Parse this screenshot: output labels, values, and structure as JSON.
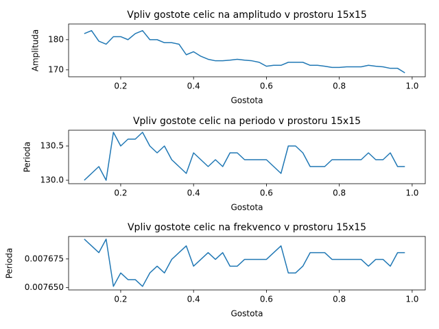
{
  "chart_data": [
    {
      "type": "line",
      "title": "Vpliv gostote celic na amplitudo v prostoru 15x15",
      "x_label": "Gostota",
      "y_label": "Amplituda",
      "x": [
        0.1,
        0.12,
        0.14,
        0.16,
        0.18,
        0.2,
        0.22,
        0.24,
        0.26,
        0.28,
        0.3,
        0.32,
        0.34,
        0.36,
        0.38,
        0.4,
        0.42,
        0.44,
        0.46,
        0.48,
        0.5,
        0.52,
        0.54,
        0.56,
        0.58,
        0.6,
        0.62,
        0.64,
        0.66,
        0.68,
        0.7,
        0.72,
        0.74,
        0.76,
        0.78,
        0.8,
        0.82,
        0.84,
        0.86,
        0.88,
        0.9,
        0.92,
        0.94,
        0.96,
        0.98
      ],
      "series": [
        {
          "color": "#1f77b4",
          "values": [
            182,
            183,
            179.5,
            178.5,
            181,
            181,
            180,
            182,
            183,
            180,
            180,
            179,
            179,
            178.5,
            175,
            176,
            174.5,
            173.5,
            173,
            173,
            173.2,
            173.5,
            173.2,
            173,
            172.5,
            171.2,
            171.5,
            171.5,
            172.5,
            172.5,
            172.5,
            171.5,
            171.5,
            171.2,
            170.8,
            170.8,
            171,
            171,
            171,
            171.5,
            171.2,
            171,
            170.5,
            170.5,
            169
          ]
        }
      ],
      "xlim": [
        0.057,
        1.036
      ],
      "xticks": [
        0.2,
        0.4,
        0.6,
        0.8,
        {
          "value": 1.0,
          "label": "1.0"
        }
      ],
      "ylim": [
        167.7,
        185.2
      ],
      "yticks": [
        170,
        180
      ]
    },
    {
      "type": "line",
      "title": "Vpliv gostote celic na periodo v prostoru 15x15",
      "x_label": "Gostota",
      "y_label": "Perioda",
      "x": [
        0.1,
        0.12,
        0.14,
        0.16,
        0.18,
        0.2,
        0.22,
        0.24,
        0.26,
        0.28,
        0.3,
        0.32,
        0.34,
        0.36,
        0.38,
        0.4,
        0.42,
        0.44,
        0.46,
        0.48,
        0.5,
        0.52,
        0.54,
        0.56,
        0.58,
        0.6,
        0.62,
        0.64,
        0.66,
        0.68,
        0.7,
        0.72,
        0.74,
        0.76,
        0.78,
        0.8,
        0.82,
        0.84,
        0.86,
        0.88,
        0.9,
        0.92,
        0.94,
        0.96,
        0.98
      ],
      "series": [
        {
          "color": "#1f77b4",
          "values": [
            130,
            130.1,
            130.2,
            130,
            130.7,
            130.5,
            130.6,
            130.6,
            130.7,
            130.5,
            130.4,
            130.5,
            130.3,
            130.2,
            130.1,
            130.4,
            130.3,
            130.2,
            130.3,
            130.2,
            130.4,
            130.4,
            130.3,
            130.3,
            130.3,
            130.3,
            130.2,
            130.1,
            130.5,
            130.5,
            130.4,
            130.2,
            130.2,
            130.2,
            130.3,
            130.3,
            130.3,
            130.3,
            130.3,
            130.4,
            130.3,
            130.3,
            130.4,
            130.2,
            130.2
          ]
        }
      ],
      "xlim": [
        0.057,
        1.036
      ],
      "xticks": [
        0.2,
        0.4,
        0.6,
        0.8,
        {
          "value": 1.0,
          "label": "1.0"
        }
      ],
      "ylim": [
        129.95,
        130.73
      ],
      "yticks": [
        {
          "value": 130,
          "label": "130.0"
        },
        130.5
      ]
    },
    {
      "type": "line",
      "title": "Vpliv gostote celic na frekvenco v prostoru 15x15",
      "x_label": "Gostota",
      "y_label": "Perioda",
      "x": [
        0.1,
        0.12,
        0.14,
        0.16,
        0.18,
        0.2,
        0.22,
        0.24,
        0.26,
        0.28,
        0.3,
        0.32,
        0.34,
        0.36,
        0.38,
        0.4,
        0.42,
        0.44,
        0.46,
        0.48,
        0.5,
        0.52,
        0.54,
        0.56,
        0.58,
        0.6,
        0.62,
        0.64,
        0.66,
        0.68,
        0.7,
        0.72,
        0.74,
        0.76,
        0.78,
        0.8,
        0.82,
        0.84,
        0.86,
        0.88,
        0.9,
        0.92,
        0.94,
        0.96,
        0.98
      ],
      "series": [
        {
          "color": "#1f77b4",
          "values": [
            0.0076923,
            0.0076864,
            0.0076805,
            0.0076923,
            0.0076511,
            0.0076628,
            0.007657,
            0.007657,
            0.0076511,
            0.0076628,
            0.0076687,
            0.0076628,
            0.0076746,
            0.0076805,
            0.0076864,
            0.0076687,
            0.0076746,
            0.0076805,
            0.0076746,
            0.0076805,
            0.0076687,
            0.0076687,
            0.0076746,
            0.0076746,
            0.0076746,
            0.0076746,
            0.0076805,
            0.0076864,
            0.0076628,
            0.0076628,
            0.0076687,
            0.0076805,
            0.0076805,
            0.0076805,
            0.0076746,
            0.0076746,
            0.0076746,
            0.0076746,
            0.0076746,
            0.0076687,
            0.0076746,
            0.0076746,
            0.0076687,
            0.0076805,
            0.0076805
          ]
        }
      ],
      "xlim": [
        0.057,
        1.036
      ],
      "xticks": [
        0.2,
        0.4,
        0.6,
        0.8,
        {
          "value": 1.0,
          "label": "1.0"
        }
      ],
      "ylim": [
        0.007648,
        0.0076946
      ],
      "yticks": [
        {
          "value": 0.00765,
          "label": "0.007650"
        },
        0.007675
      ]
    }
  ]
}
